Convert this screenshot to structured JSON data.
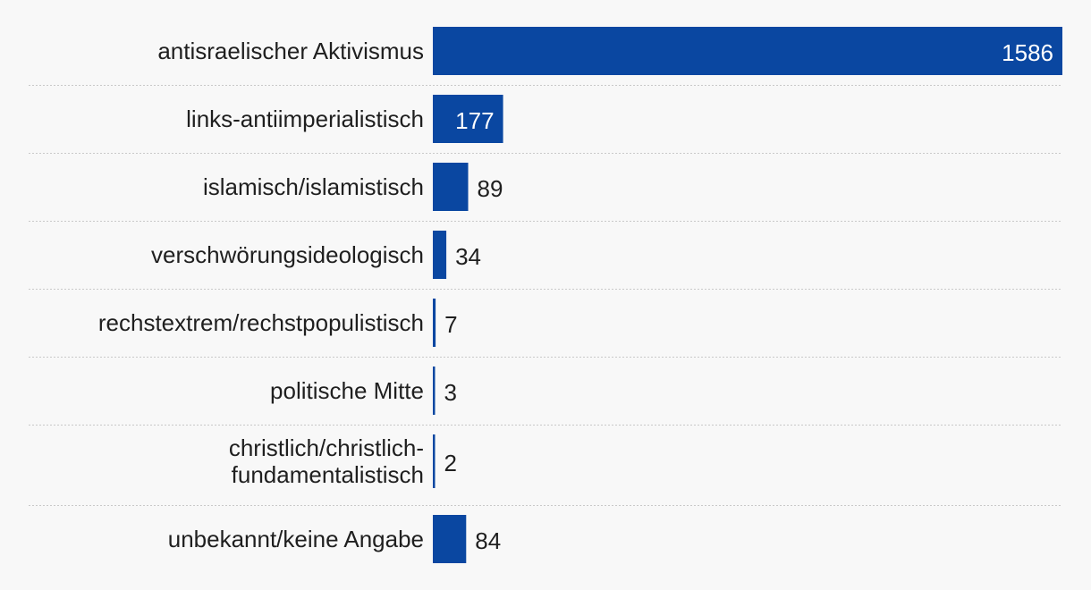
{
  "chart_data": {
    "type": "bar",
    "orientation": "horizontal",
    "categories": [
      "antisraelischer Aktivismus",
      "links-antiimperialistisch",
      "islamisch/islamistisch",
      "verschwörungsideologisch",
      "rechstextrem/rechstpopulistisch",
      "politische Mitte",
      "christlich/christlich-fundamentalistisch",
      "unbekannt/keine Angabe"
    ],
    "category_lines": [
      [
        "antisraelischer Aktivismus"
      ],
      [
        "links-antiimperialistisch"
      ],
      [
        "islamisch/islamistisch"
      ],
      [
        "verschwörungsideologisch"
      ],
      [
        "rechstextrem/rechstpopulistisch"
      ],
      [
        "politische Mitte"
      ],
      [
        "christlich/christlich-",
        "fundamentalistisch"
      ],
      [
        "unbekannt/keine Angabe"
      ]
    ],
    "values": [
      1586,
      177,
      89,
      34,
      7,
      3,
      2,
      84
    ],
    "value_labels": [
      "1586",
      "177",
      "89",
      "34",
      "7",
      "3",
      "2",
      "84"
    ],
    "xlim": [
      0,
      1586
    ],
    "grid": false,
    "legend": "none"
  },
  "colors": {
    "bar": "#0a47a1",
    "label_inside": "#ffffff",
    "label_outside": "#1f1f1f",
    "background": "#f8f8f8"
  }
}
